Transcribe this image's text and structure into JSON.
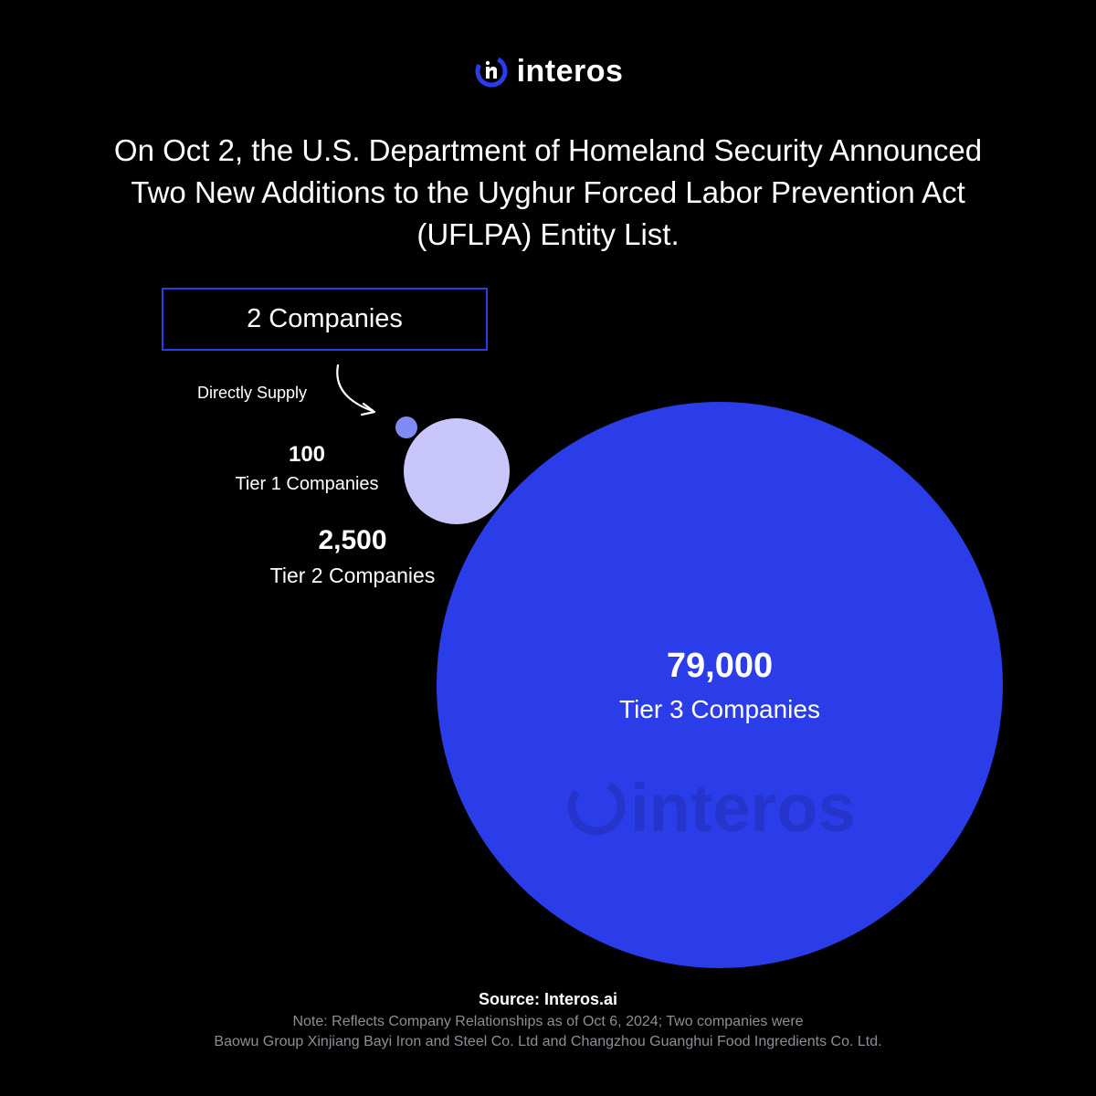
{
  "brand": {
    "name": "interos",
    "accent_color": "#2b3de8",
    "light_color": "#c9c6fb",
    "small_dot_color": "#7f8bf0"
  },
  "headline": "On Oct 2, the U.S. Department of Homeland Security Announced Two New Additions to the Uyghur Forced Labor Prevention Act (UFLPA) Entity List.",
  "callout": {
    "box_label": "2 Companies",
    "arrow_label": "Directly Supply"
  },
  "chart_data": {
    "type": "bubble",
    "title": "",
    "series": [
      {
        "name": "2 Companies",
        "value": 2,
        "color": "#7f8bf0"
      },
      {
        "name": "Tier 1 Companies",
        "value": 100,
        "value_label": "100",
        "color": "#c9c6fb"
      },
      {
        "name": "Tier 2 Companies",
        "value": 2500,
        "value_label": "2,500",
        "color": "#000000"
      },
      {
        "name": "Tier 3 Companies",
        "value": 79000,
        "value_label": "79,000",
        "color": "#2b3de8"
      }
    ]
  },
  "watermark": "interos",
  "footer": {
    "source": "Source: Interos.ai",
    "note_line1": "Note: Reflects Company Relationships as of Oct 6, 2024; Two companies were",
    "note_line2": "Baowu Group Xinjiang Bayi Iron and Steel Co. Ltd and Changzhou Guanghui Food Ingredients Co. Ltd."
  }
}
